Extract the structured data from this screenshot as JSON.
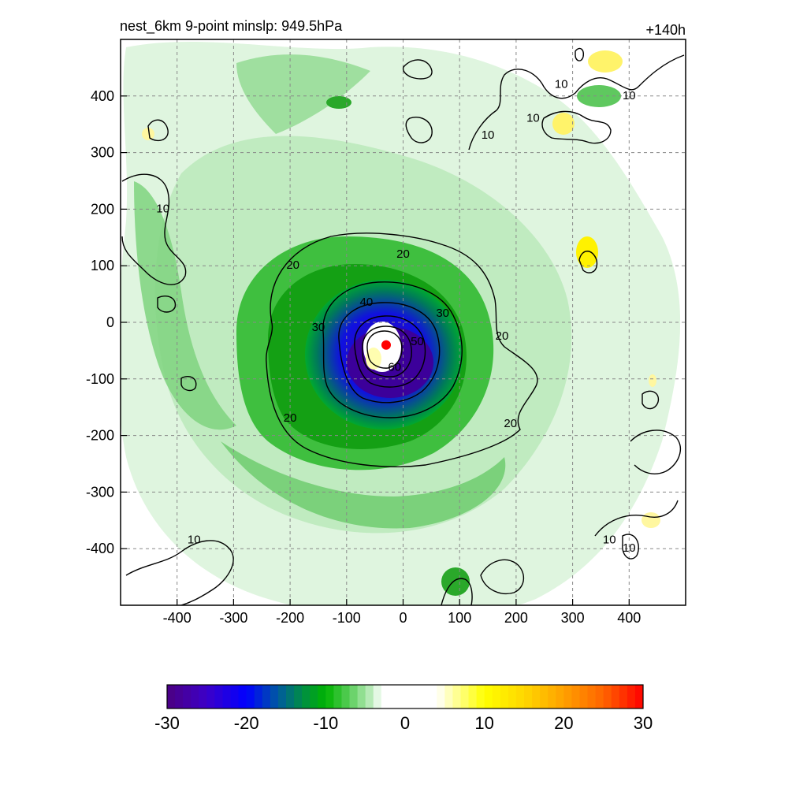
{
  "chart_data": {
    "type": "heatmap",
    "title": "nest_6km  9-point minslp: 949.5hPa",
    "subtitle": "+140h",
    "xlabel": "",
    "ylabel": "",
    "xlim": [
      -500,
      500
    ],
    "ylim": [
      -500,
      500
    ],
    "xticks": [
      -400,
      -300,
      -200,
      -100,
      0,
      100,
      200,
      300,
      400
    ],
    "yticks": [
      400,
      300,
      200,
      100,
      0,
      -100,
      -200,
      -300,
      -400
    ],
    "grid": true,
    "center_marker": {
      "x": -30,
      "y": -40,
      "color": "#ff0000"
    },
    "contour_levels": [
      10,
      20,
      30,
      40,
      50,
      60
    ],
    "contour_labels": [
      {
        "text": "20",
        "x": 0,
        "y": 120
      },
      {
        "text": "20",
        "x": -200,
        "y": -170
      },
      {
        "text": "20",
        "x": 190,
        "y": -180
      },
      {
        "text": "20",
        "x": 175,
        "y": -25
      },
      {
        "text": "20",
        "x": -195,
        "y": 100
      },
      {
        "text": "30",
        "x": -150,
        "y": -10
      },
      {
        "text": "30",
        "x": 70,
        "y": 15
      },
      {
        "text": "40",
        "x": -65,
        "y": 35
      },
      {
        "text": "50",
        "x": 25,
        "y": -35
      },
      {
        "text": "60",
        "x": -15,
        "y": -80
      },
      {
        "text": "10",
        "x": -425,
        "y": 200
      },
      {
        "text": "10",
        "x": 280,
        "y": 420
      },
      {
        "text": "10",
        "x": 230,
        "y": 360
      },
      {
        "text": "10",
        "x": 150,
        "y": 330
      },
      {
        "text": "10",
        "x": 400,
        "y": 400
      },
      {
        "text": "10",
        "x": -370,
        "y": -385
      },
      {
        "text": "10",
        "x": 365,
        "y": -385
      },
      {
        "text": "10",
        "x": 400,
        "y": -400
      }
    ],
    "colorbar": {
      "min": -30,
      "max": 30,
      "ticks": [
        -30,
        -20,
        -10,
        0,
        10,
        20,
        30
      ],
      "tick_labels": [
        "-30",
        "-20",
        "-10",
        "0",
        "10",
        "20",
        "30"
      ]
    },
    "colors": {
      "negative_strong": "#4b0082",
      "negative_mid": "#0000ff",
      "negative_low": "#00b400",
      "positive_low": "#ffff00",
      "positive_high": "#ff0000"
    }
  }
}
